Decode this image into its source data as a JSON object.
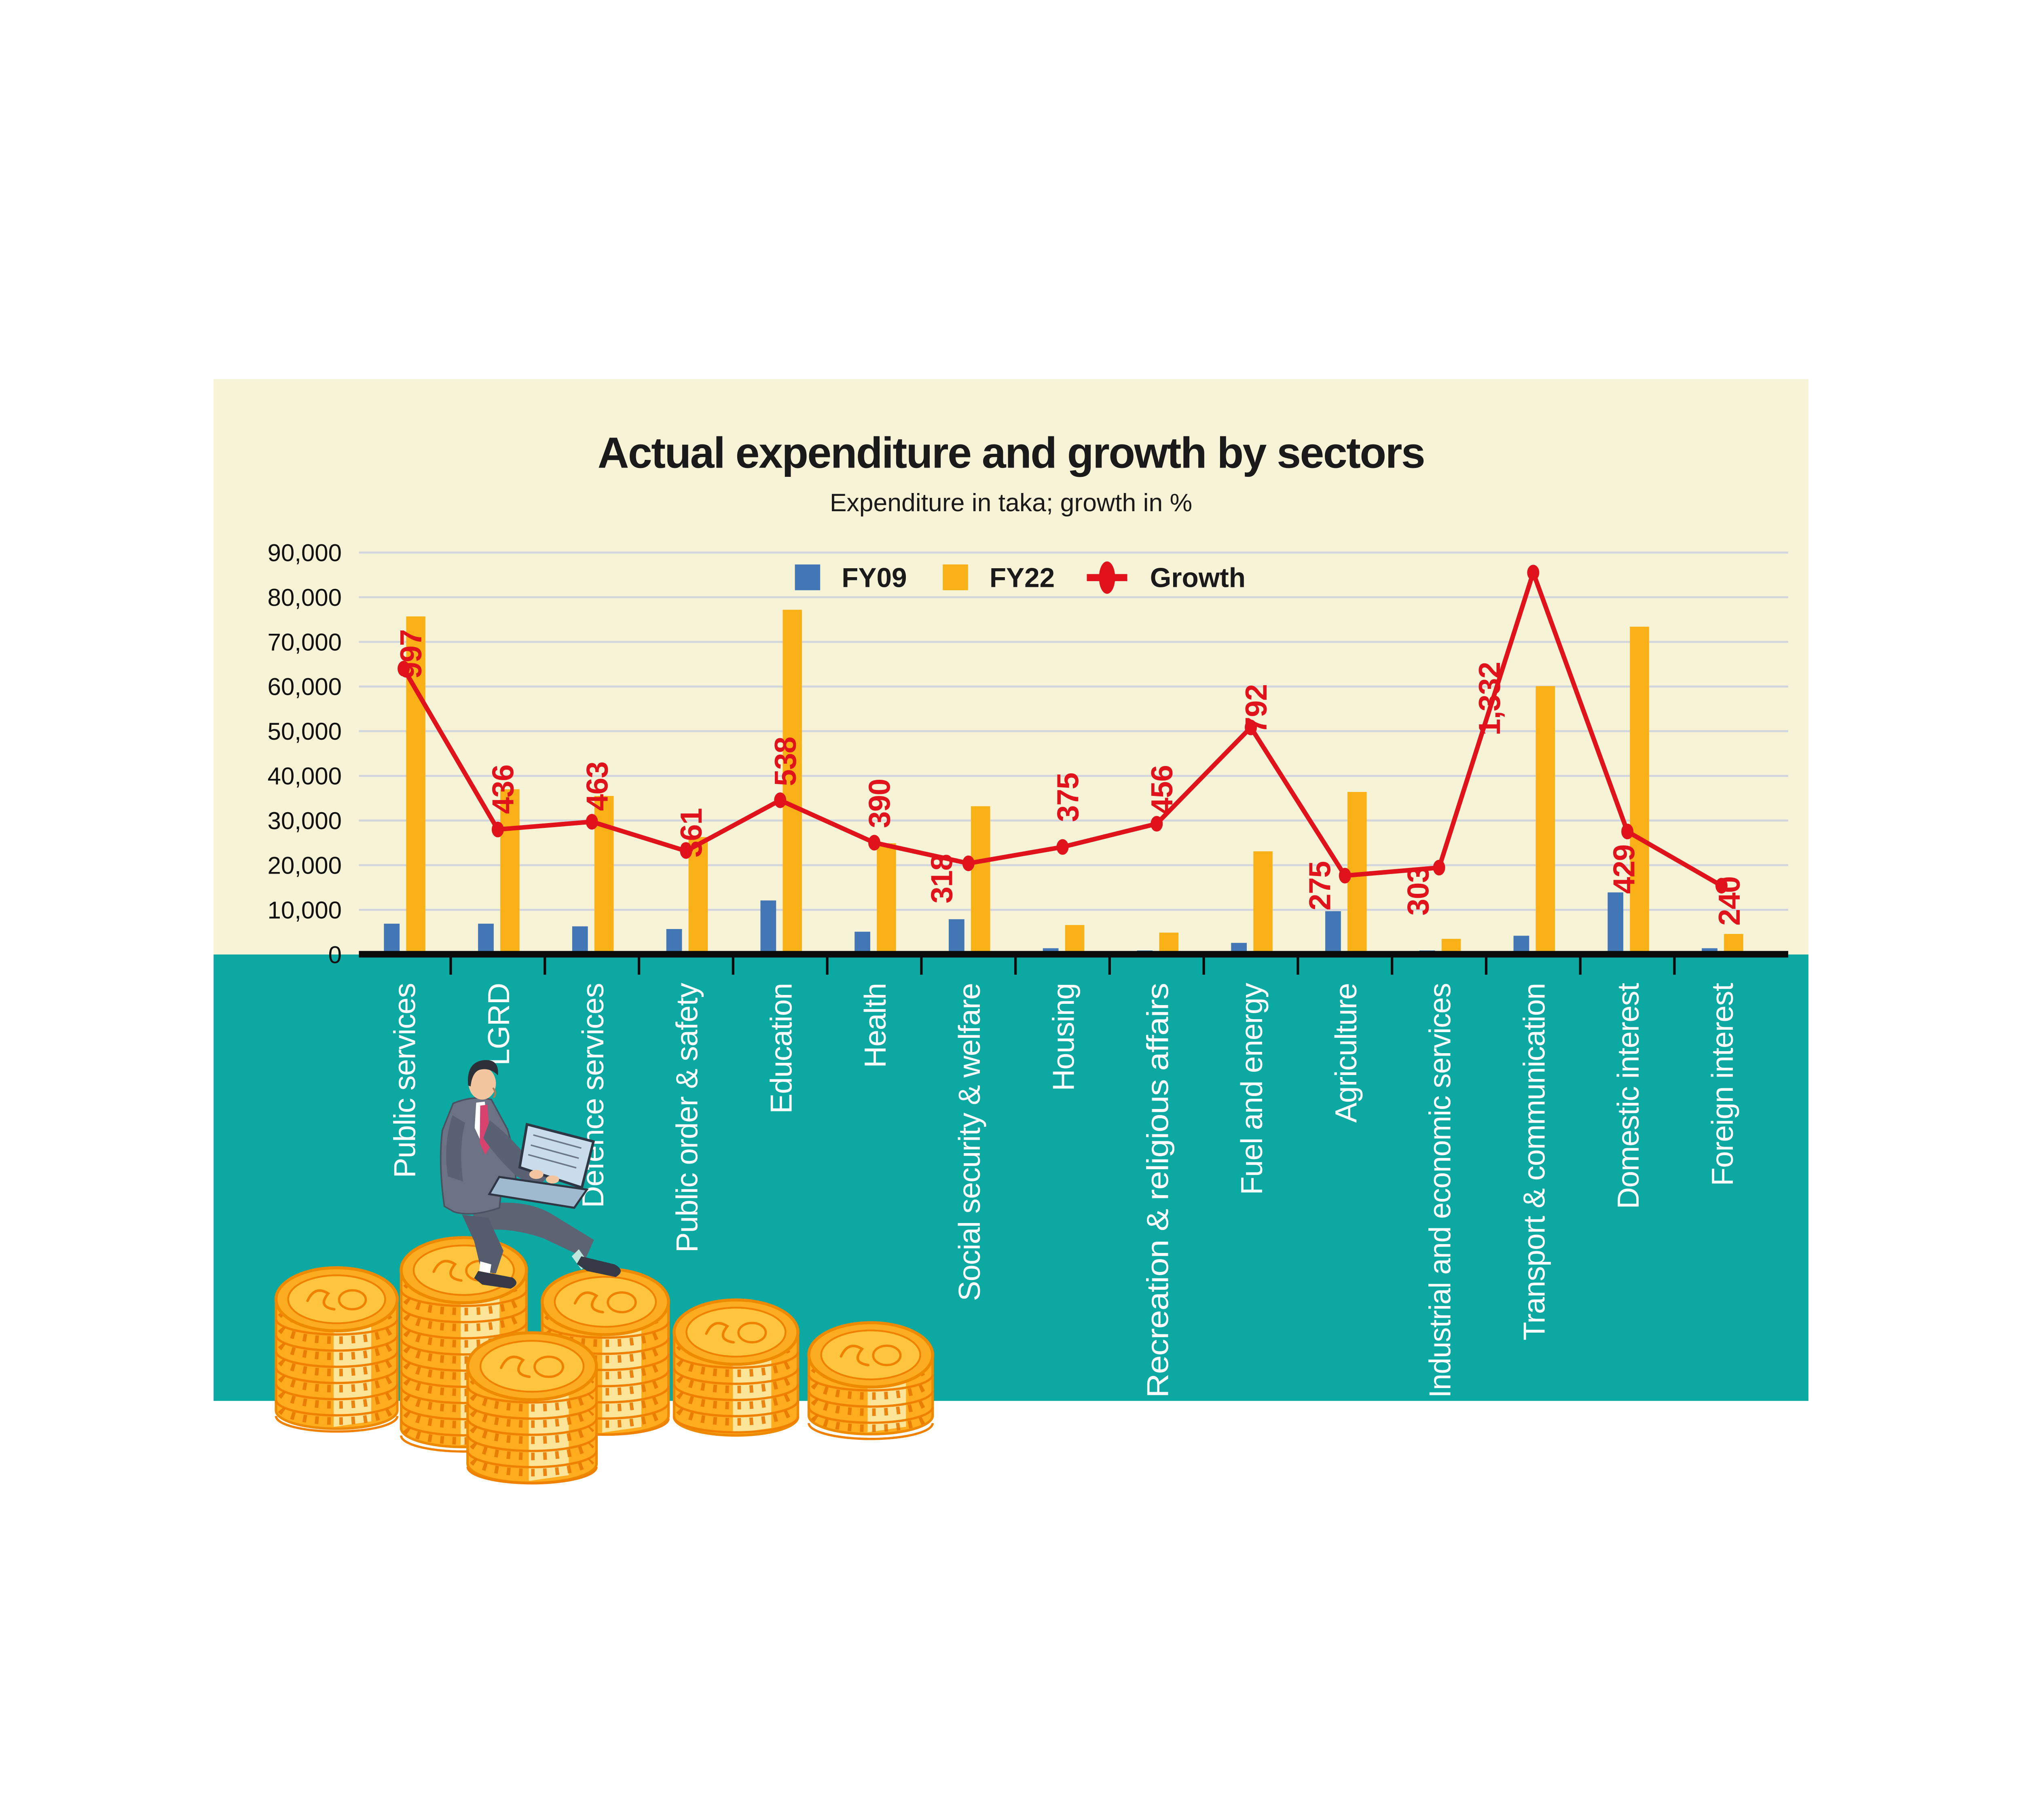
{
  "title": "Actual expenditure and growth by sectors",
  "subtitle": "Expenditure in taka; growth in %",
  "legend": {
    "items": [
      {
        "label": "FY09",
        "swatch": "blue-square"
      },
      {
        "label": "FY22",
        "swatch": "orange-square"
      },
      {
        "label": "Growth",
        "swatch": "red-line-dot-marker"
      }
    ]
  },
  "y_axis_labels": [
    "0",
    "10,000",
    "20,000",
    "30,000",
    "40,000",
    "50,000",
    "60,000",
    "70,000",
    "80,000",
    "90,000"
  ],
  "chart_data": {
    "type": "bar",
    "subtype": "grouped-bars-with-line-overlay",
    "title": "Actual expenditure and growth by sectors",
    "subtitle": "Expenditure in taka; growth in %",
    "categories": [
      "Public services",
      "LGRD",
      "Defence services",
      "Public order & safety",
      "Education",
      "Health",
      "Social security & welfare",
      "Housing",
      "Recreation & religious affairs",
      "Fuel and energy",
      "Agriculture",
      "Industrial and economic services",
      "Transport & communication",
      "Domestic interest",
      "Foreign interest"
    ],
    "series": [
      {
        "name": "FY09",
        "type": "bar",
        "values": [
          6900,
          6900,
          6300,
          5700,
          12100,
          5100,
          7900,
          1400,
          900,
          2600,
          9700,
          900,
          4200,
          13900,
          1400
        ]
      },
      {
        "name": "FY22",
        "type": "bar",
        "values": [
          75700,
          37000,
          35500,
          26300,
          77200,
          24900,
          33200,
          6600,
          4900,
          23100,
          36400,
          3500,
          60100,
          73400,
          4600
        ]
      },
      {
        "name": "Growth",
        "type": "line",
        "unit": "%",
        "values": [
          997,
          436,
          463,
          361,
          538,
          390,
          318,
          375,
          456,
          792,
          275,
          303,
          1332,
          429,
          240
        ],
        "labels": [
          "997",
          "436",
          "463",
          "361",
          "538",
          "390",
          "318",
          "375",
          "456",
          "792",
          "275",
          "303",
          "1,332",
          "429",
          "240"
        ]
      }
    ],
    "ylabel": "Expenditure in taka",
    "ylim": [
      0,
      90000
    ],
    "grid": true,
    "legend_position": "top-center",
    "growth_line_plotted_at_taka_equivalent_per_percent": 64.2
  },
  "colors": {
    "page_bg": "#ffffff",
    "chart_bg_upper": "#F7F3D6",
    "chart_bg_lower": "#0CA8A2",
    "fy09_blue": "#4376B4",
    "fy22_orange": "#FAB117",
    "growth_red": "#E0131C",
    "gridline": "#D3D5DD",
    "axis_black": "#0b0b0b",
    "text_dark": "#1A1A1A",
    "category_text": "#ffffff",
    "coin_body": "#FFAD1F",
    "coin_line": "#EE8A00",
    "coin_highlight": "#FCE8A0"
  },
  "illustration": {
    "description": "Businessman in a gray suit with red tie sitting on tall stacks of gold coins, typing on a laptop",
    "elements": [
      "coin-stacks",
      "businessman",
      "laptop"
    ]
  }
}
